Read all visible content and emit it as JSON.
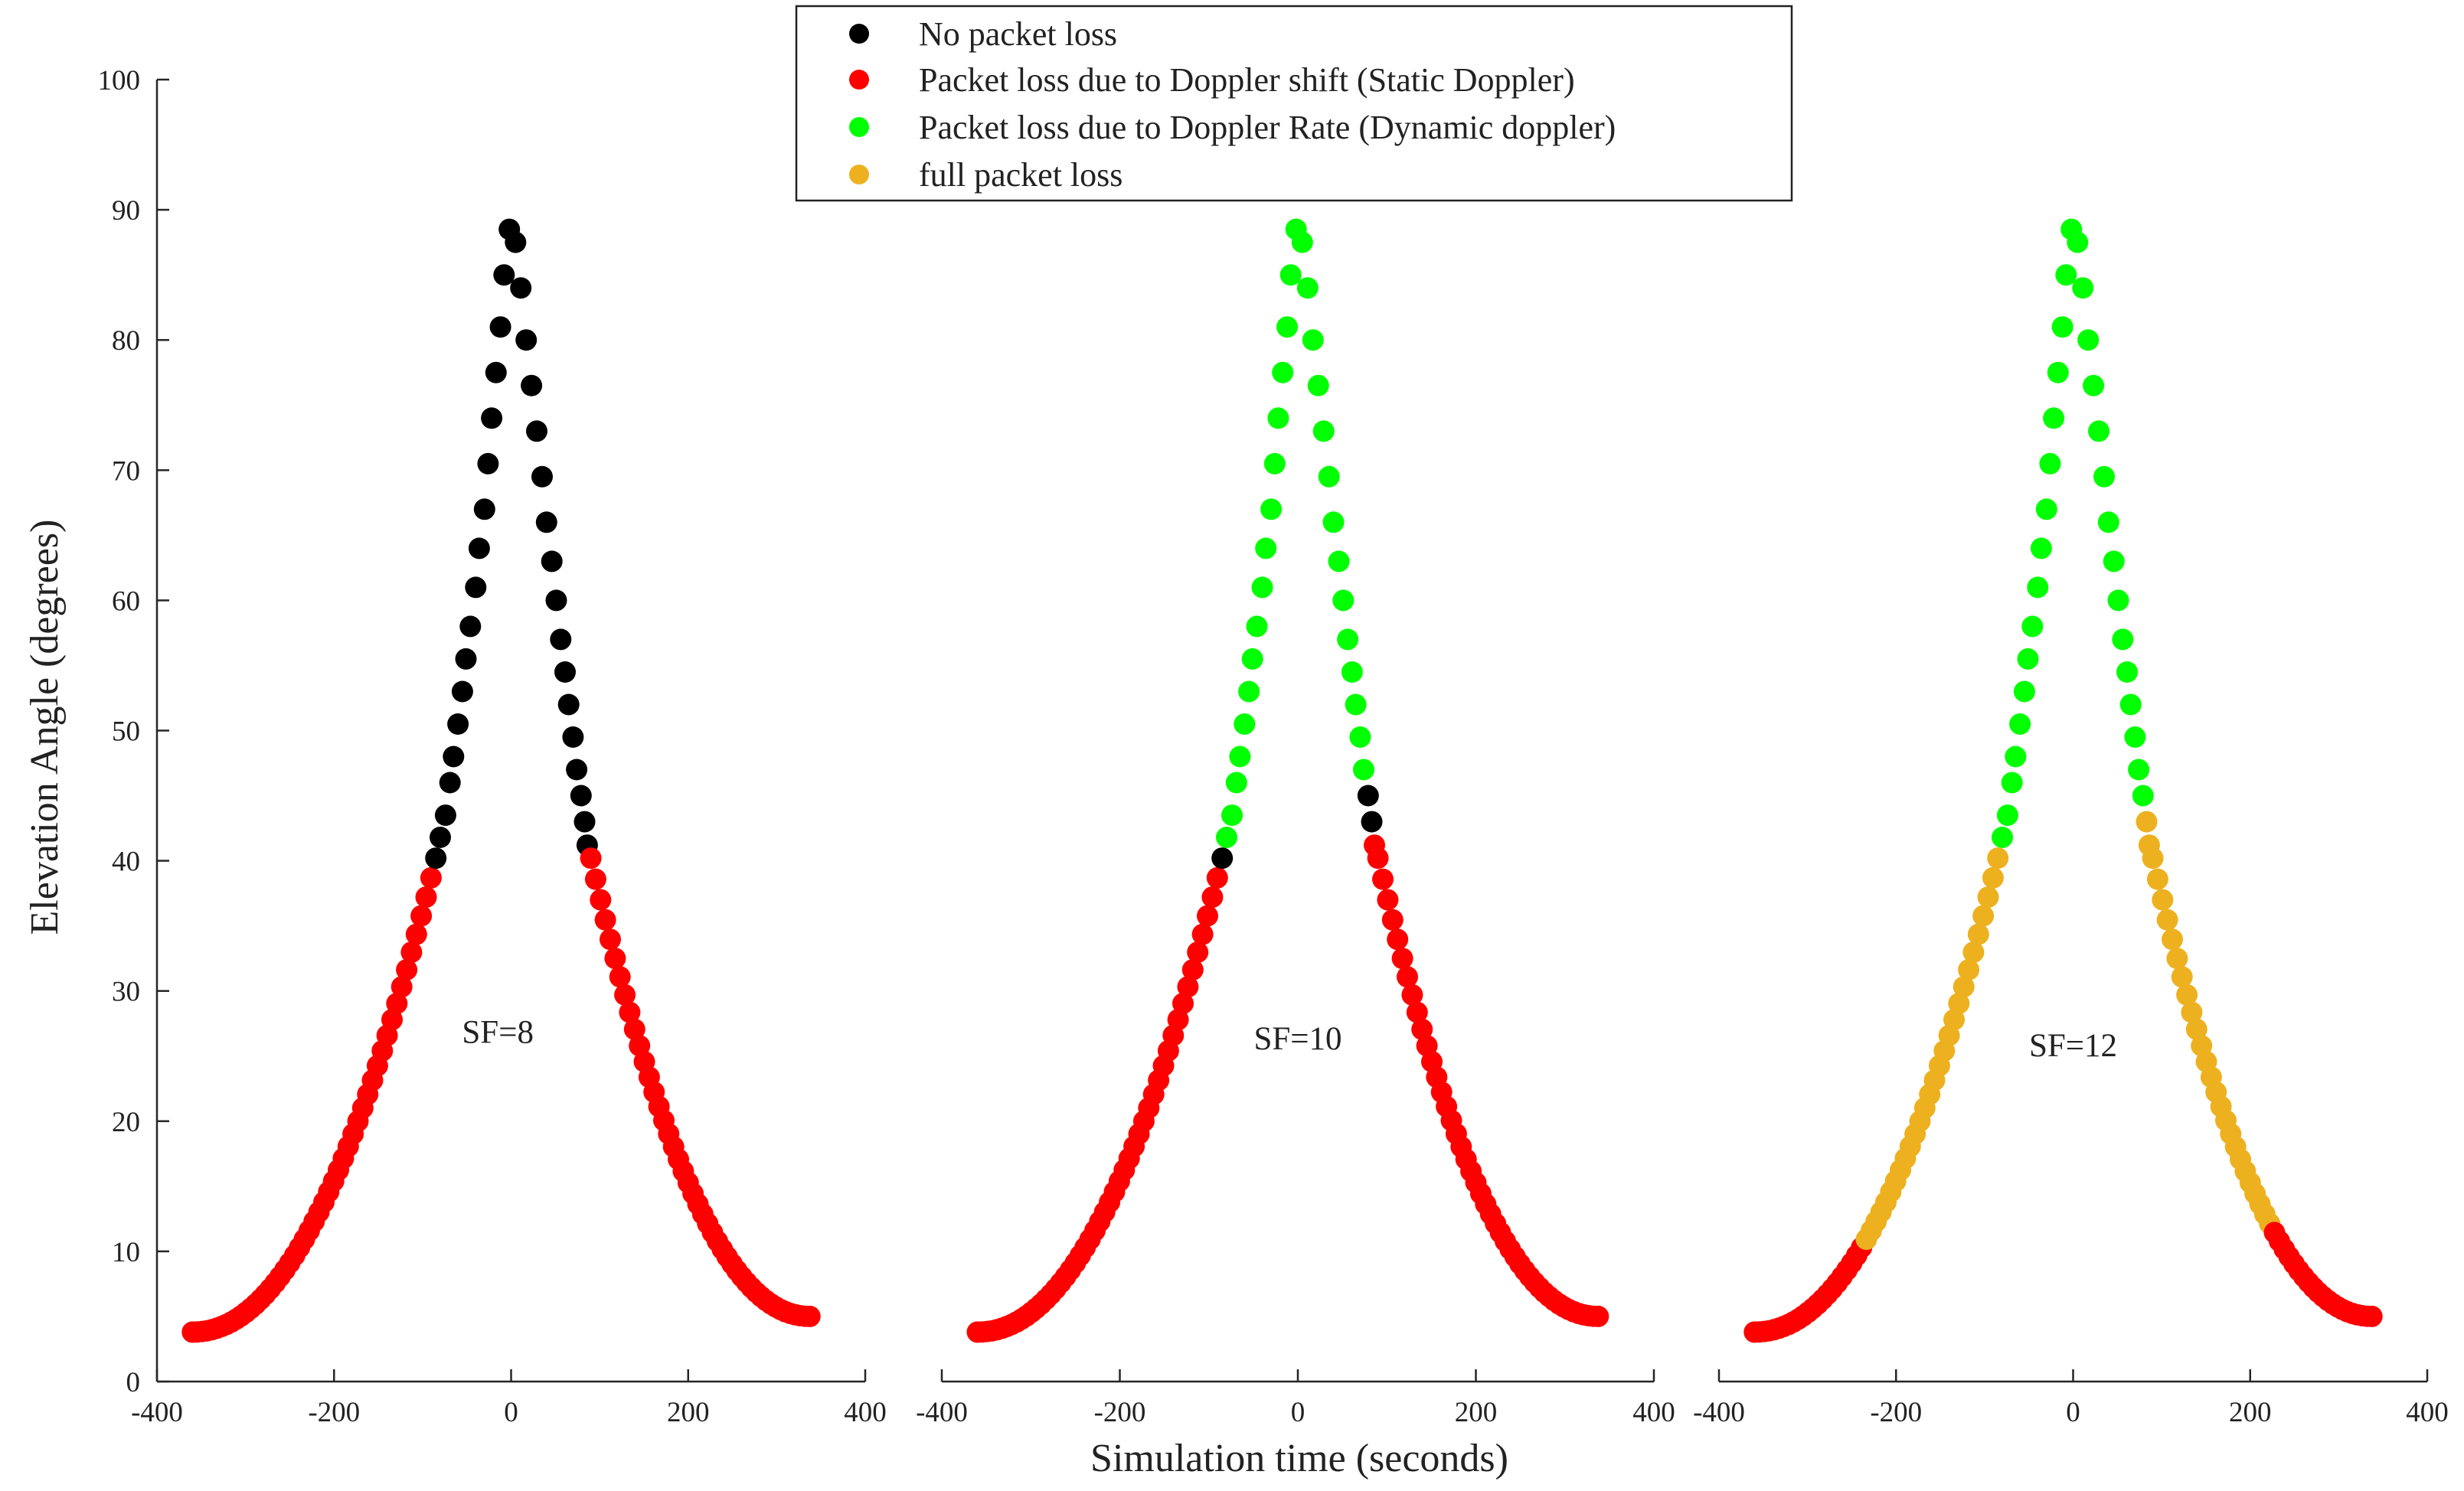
{
  "chart_data": {
    "type": "scatter",
    "ylabel": "Elevation Angle (degrees)",
    "xlabel": "Simulation time (seconds)",
    "xlim": [
      -400,
      400
    ],
    "ylim": [
      0,
      100
    ],
    "xticks": [
      "-400",
      "-200",
      "0",
      "200",
      "400"
    ],
    "yticks": [
      "0",
      "10",
      "20",
      "30",
      "40",
      "50",
      "60",
      "70",
      "80",
      "90",
      "100"
    ],
    "legend": {
      "position": "top-center",
      "entries": [
        {
          "label": "No packet loss",
          "color": "#000000",
          "key": "black"
        },
        {
          "label": "Packet loss due to Doppler shift (Static Doppler)",
          "color": "#ff0000",
          "key": "red"
        },
        {
          "label": "Packet loss due to Doppler Rate (Dynamic doppler)",
          "color": "#00ff00",
          "key": "green"
        },
        {
          "label": "full packet loss",
          "color": "#edb120",
          "key": "orange"
        }
      ]
    },
    "curve": {
      "top_points": [
        [
          -2,
          88.5
        ],
        [
          5,
          87.5
        ],
        [
          -8,
          85
        ],
        [
          11,
          84
        ],
        [
          -12,
          81
        ],
        [
          17,
          80
        ],
        [
          -17,
          77.5
        ],
        [
          23,
          76.5
        ],
        [
          -22,
          74
        ],
        [
          29,
          73
        ],
        [
          -26,
          70.5
        ],
        [
          35,
          69.5
        ],
        [
          -30,
          67
        ],
        [
          40,
          66
        ],
        [
          -36,
          64
        ],
        [
          46,
          63
        ],
        [
          -40,
          61
        ],
        [
          51,
          60
        ],
        [
          -46,
          58
        ],
        [
          56,
          57
        ],
        [
          -51,
          55.5
        ],
        [
          61,
          54.5
        ],
        [
          -55,
          53
        ],
        [
          65,
          52
        ],
        [
          -60,
          50.5
        ],
        [
          70,
          49.5
        ],
        [
          -65,
          48
        ],
        [
          74,
          47
        ],
        [
          -69,
          46
        ],
        [
          79,
          45
        ],
        [
          -74,
          43.5
        ],
        [
          83,
          43
        ],
        [
          -80,
          41.8
        ],
        [
          86,
          41.2
        ]
      ],
      "tail_start": -360,
      "tail_end": 338,
      "tail_left_end": -85,
      "tail_right_start": 90,
      "tail_y_start": 3.8,
      "tail_y_end": 5.0,
      "tail_y_peak": 40.2,
      "tail_step": 5.5
    },
    "panels": [
      {
        "annotation": "SF=8",
        "annotation_pos": [
          -15,
          26
        ],
        "segments": [
          {
            "from": -400,
            "to": -88,
            "color": "red"
          },
          {
            "from": -88,
            "to": 88,
            "color": "black"
          },
          {
            "from": 88,
            "to": 400,
            "color": "red"
          }
        ]
      },
      {
        "annotation": "SF=10",
        "annotation_pos": [
          0,
          25.5
        ],
        "segments": [
          {
            "from": -400,
            "to": -88,
            "color": "red"
          },
          {
            "from": -88,
            "to": -81,
            "color": "black"
          },
          {
            "from": -81,
            "to": 76,
            "color": "green"
          },
          {
            "from": 76,
            "to": 84,
            "color": "black"
          },
          {
            "from": 84,
            "to": 400,
            "color": "red"
          }
        ]
      },
      {
        "annotation": "SF=12",
        "annotation_pos": [
          0,
          25
        ],
        "segments": [
          {
            "from": -400,
            "to": -238,
            "color": "red"
          },
          {
            "from": -238,
            "to": -84,
            "color": "orange"
          },
          {
            "from": -84,
            "to": 82,
            "color": "green"
          },
          {
            "from": 82,
            "to": 225,
            "color": "orange"
          },
          {
            "from": 225,
            "to": 400,
            "color": "red"
          }
        ]
      }
    ]
  }
}
